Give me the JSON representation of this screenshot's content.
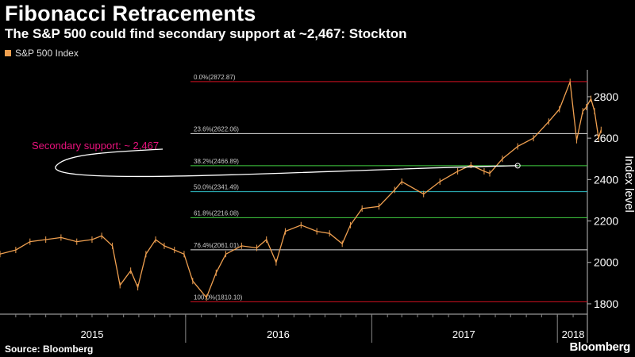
{
  "title": "Fibonacci Retracements",
  "subtitle": "The S&P 500 could find secondary support at ~2,467: Stockton",
  "legend_label": "S&P 500 Index",
  "source": "Source: Bloomberg",
  "logo": "Bloomberg",
  "colors": {
    "series": "#f0a050",
    "annotation": "#e8127c"
  },
  "chart_data": {
    "type": "line",
    "title": "Fibonacci Retracements",
    "subtitle": "The S&P 500 could find secondary support at ~2,467: Stockton",
    "ylabel": "Index level",
    "ylim": [
      1750,
      2930
    ],
    "yticks": [
      1800,
      2000,
      2200,
      2400,
      2600,
      2800
    ],
    "xlim": [
      "2015-01-01",
      "2018-03-01"
    ],
    "x_tick_labels": [
      "2015",
      "2016",
      "2017",
      "2018"
    ],
    "series": [
      {
        "name": "S&P 500 Index",
        "x": [
          "2015-01-01",
          "2015-02-01",
          "2015-03-01",
          "2015-04-01",
          "2015-05-01",
          "2015-06-01",
          "2015-07-01",
          "2015-07-20",
          "2015-08-10",
          "2015-08-25",
          "2015-09-15",
          "2015-09-29",
          "2015-10-15",
          "2015-11-03",
          "2015-11-20",
          "2015-12-10",
          "2015-12-29",
          "2016-01-15",
          "2016-02-11",
          "2016-03-01",
          "2016-03-20",
          "2016-04-20",
          "2016-05-20",
          "2016-06-08",
          "2016-06-27",
          "2016-07-15",
          "2016-08-15",
          "2016-09-15",
          "2016-10-10",
          "2016-11-04",
          "2016-11-20",
          "2016-12-13",
          "2017-01-15",
          "2017-02-15",
          "2017-03-01",
          "2017-04-13",
          "2017-05-15",
          "2017-06-19",
          "2017-07-15",
          "2017-08-10",
          "2017-08-21",
          "2017-09-15",
          "2017-10-15",
          "2017-11-15",
          "2017-12-15",
          "2018-01-05",
          "2018-01-26",
          "2018-02-08",
          "2018-02-20",
          "2018-02-27",
          "2018-03-08",
          "2018-03-15",
          "2018-03-23",
          "2018-03-28"
        ],
        "y": [
          2040,
          2060,
          2100,
          2110,
          2120,
          2100,
          2110,
          2128,
          2080,
          1890,
          1960,
          1880,
          2040,
          2110,
          2080,
          2060,
          2040,
          1910,
          1830,
          1950,
          2040,
          2080,
          2070,
          2110,
          2000,
          2150,
          2180,
          2150,
          2140,
          2090,
          2180,
          2260,
          2270,
          2350,
          2390,
          2330,
          2390,
          2440,
          2470,
          2440,
          2430,
          2500,
          2560,
          2600,
          2680,
          2740,
          2872,
          2590,
          2730,
          2750,
          2790,
          2730,
          2600,
          2640
        ]
      }
    ],
    "fibonacci_levels": [
      {
        "label": "0.0%(2872.87)",
        "value": 2872.87,
        "color": "#d01020"
      },
      {
        "label": "23.6%(2622.06)",
        "value": 2622.06,
        "color": "#dddddd"
      },
      {
        "label": "38.2%(2466.89)",
        "value": 2466.89,
        "color": "#40d040"
      },
      {
        "label": "50.0%(2341.49)",
        "value": 2341.49,
        "color": "#30c0c8"
      },
      {
        "label": "61.8%(2216.08)",
        "value": 2216.08,
        "color": "#40d040"
      },
      {
        "label": "76.4%(2061.01)",
        "value": 2061.01,
        "color": "#dddddd"
      },
      {
        "label": "100.0%(1810.10)",
        "value": 1810.1,
        "color": "#d01020"
      }
    ],
    "annotation": {
      "text": "Secondary support: ~ 2,467"
    }
  }
}
